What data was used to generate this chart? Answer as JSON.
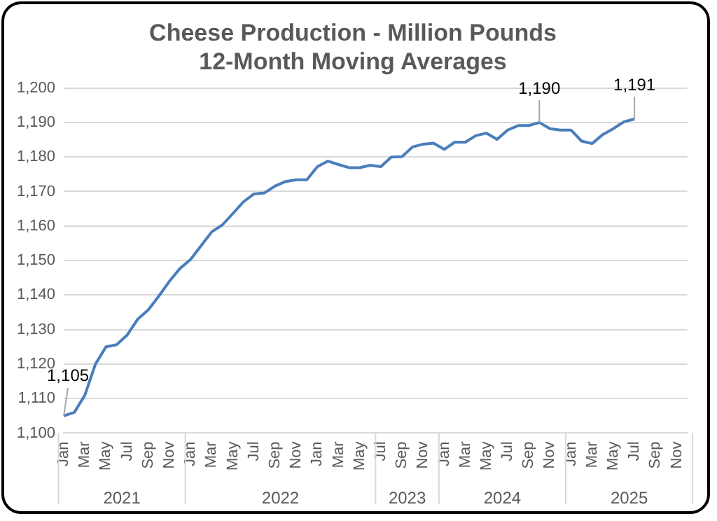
{
  "chart_data": {
    "type": "line",
    "title": "Cheese Production - Million Pounds",
    "subtitle": "12-Month Moving Averages",
    "categories": [
      "Jan",
      null,
      "Mar",
      null,
      "May",
      null,
      "Jul",
      null,
      "Sep",
      null,
      "Nov",
      null,
      "Jan",
      null,
      "Mar",
      null,
      "May",
      null,
      "Jul",
      null,
      "Sep",
      null,
      "Nov",
      null,
      "Jan",
      null,
      "Mar",
      null,
      "May",
      null,
      "Jul",
      null,
      "Sep",
      null,
      "Nov",
      null,
      "Jan",
      null,
      "Mar",
      null,
      "May",
      null,
      "Jul",
      null,
      "Sep",
      null,
      "Nov",
      null,
      "Jan",
      null,
      "Mar",
      null,
      "May",
      null,
      "Jul",
      null,
      "Sep",
      null,
      "Nov",
      null
    ],
    "series": [
      {
        "color": "#4a7ebb",
        "values": [
          1105,
          1106,
          1111,
          1120,
          1125,
          1125.6,
          1128.4,
          1133,
          1135.7,
          1139.7,
          1144,
          1147.7,
          1150.3,
          1154.3,
          1158.3,
          1160.3,
          1163.6,
          1167,
          1169.3,
          1169.6,
          1171.6,
          1172.9,
          1173.4,
          1173.4,
          1177.2,
          1178.8,
          1177.8,
          1176.9,
          1176.9,
          1177.6,
          1177.2,
          1180,
          1180.1,
          1182.9,
          1183.7,
          1184,
          1182.2,
          1184.3,
          1184.3,
          1186.2,
          1186.9,
          1185.1,
          1187.8,
          1189.1,
          1189.1,
          1190,
          1188.2,
          1187.8,
          1187.8,
          1184.6,
          1183.9,
          1186.5,
          1188.2,
          1190.2,
          1191,
          null,
          null,
          null,
          null,
          null
        ],
        "value_labels": [
          "1,105",
          null,
          null,
          null,
          null,
          null,
          null,
          null,
          null,
          null,
          null,
          null,
          null,
          null,
          null,
          null,
          null,
          null,
          null,
          null,
          null,
          null,
          null,
          null,
          null,
          null,
          null,
          null,
          null,
          null,
          null,
          null,
          null,
          null,
          null,
          null,
          null,
          null,
          null,
          null,
          null,
          null,
          null,
          null,
          null,
          "1,190",
          null,
          null,
          null,
          null,
          null,
          null,
          null,
          null,
          "1,191",
          null,
          null,
          null,
          null,
          null
        ]
      }
    ],
    "ylim": [
      1100,
      1200
    ],
    "yticks": [
      {
        "value": 1100,
        "label": "1,100"
      },
      {
        "value": 1110,
        "label": "1,110"
      },
      {
        "value": 1120,
        "label": "1,120"
      },
      {
        "value": 1130,
        "label": "1,130"
      },
      {
        "value": 1140,
        "label": "1,140"
      },
      {
        "value": 1150,
        "label": "1,150"
      },
      {
        "value": 1160,
        "label": "1,160"
      },
      {
        "value": 1170,
        "label": "1,170"
      },
      {
        "value": 1180,
        "label": "1,180"
      },
      {
        "value": 1190,
        "label": "1,190"
      },
      {
        "value": 1200,
        "label": "1,200"
      }
    ],
    "annotations": [
      "2021",
      "2022",
      "2023",
      "2024",
      "2025"
    ],
    "grid": "y",
    "legend": false,
    "marker": "none",
    "line_style": "solid"
  }
}
